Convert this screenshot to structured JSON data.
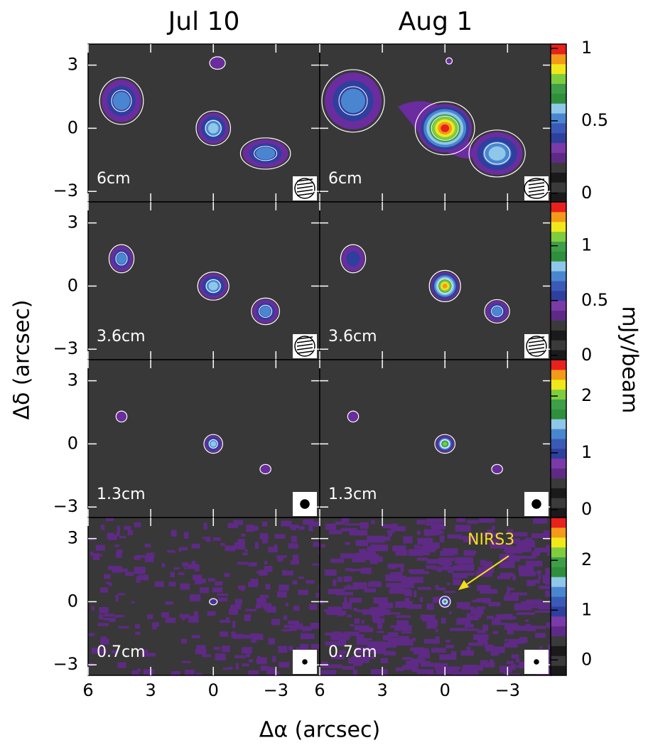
{
  "column_titles": [
    "Jul 10",
    "Aug 1"
  ],
  "x_label": "Δα (arcsec)",
  "y_label": "Δδ (arcsec)",
  "colorbar_label": "mJy/beam",
  "row_labels": [
    "6cm",
    "3.6cm",
    "1.3cm",
    "0.7cm"
  ],
  "xlim": [
    6,
    -5.1
  ],
  "xticks": [
    6,
    3,
    0,
    {
      "value": -3,
      "label": "−3"
    }
  ],
  "ylim": [
    -3.5,
    4
  ],
  "yticks": [
    {
      "value": -3,
      "label": "−3"
    },
    0,
    3
  ],
  "colorbars": [
    {
      "lim": [
        -0.06,
        1.03
      ],
      "ticks": [
        0,
        0.5,
        1
      ]
    },
    {
      "lim": [
        -0.04,
        1.4
      ],
      "ticks": [
        0,
        0.5,
        1
      ]
    },
    {
      "lim": [
        -0.14,
        2.64
      ],
      "ticks": [
        0,
        1,
        2
      ]
    },
    {
      "lim": [
        -0.31,
        2.86
      ],
      "ticks": [
        0,
        1,
        2
      ]
    }
  ],
  "annotation": "NIRS3"
}
